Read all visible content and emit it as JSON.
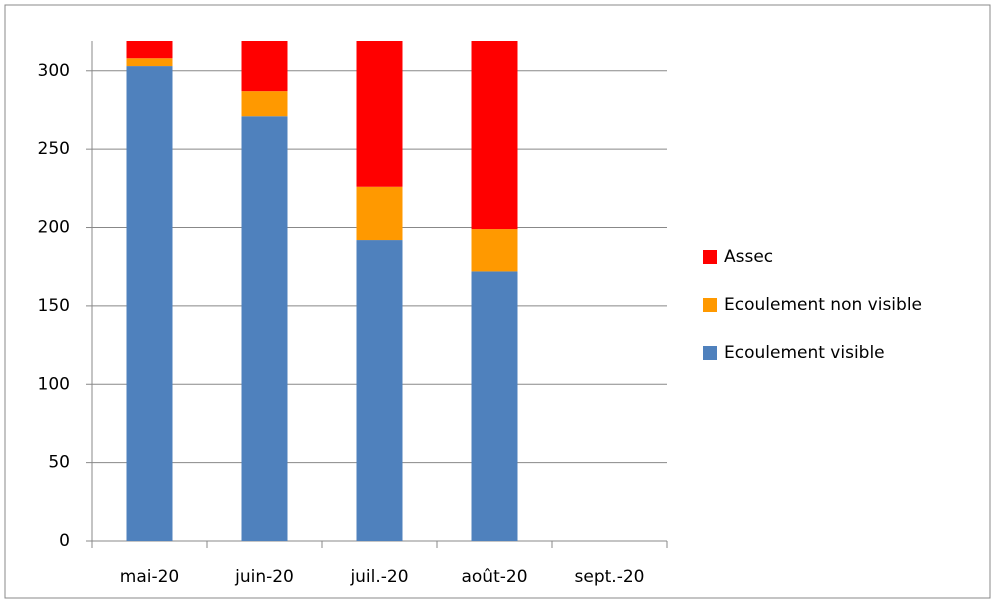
{
  "chart_data": {
    "type": "stacked_bar",
    "categories": [
      "mai-20",
      "juin-20",
      "juil.-20",
      "août-20",
      "sept.-20"
    ],
    "series": [
      {
        "name": "Ecoulement visible",
        "color": "#4f81bd",
        "values": [
          303,
          271,
          192,
          172,
          null
        ]
      },
      {
        "name": "Ecoulement non visible",
        "color": "#ff9900",
        "values": [
          5,
          16,
          34,
          27,
          null
        ]
      },
      {
        "name": "Assec",
        "color": "#ff0000",
        "values": [
          11,
          32,
          93,
          120,
          null
        ]
      }
    ],
    "ylim": [
      0,
      319
    ],
    "yticks": [
      0,
      50,
      100,
      150,
      200,
      250,
      300
    ],
    "grid": true,
    "legend": "right"
  }
}
